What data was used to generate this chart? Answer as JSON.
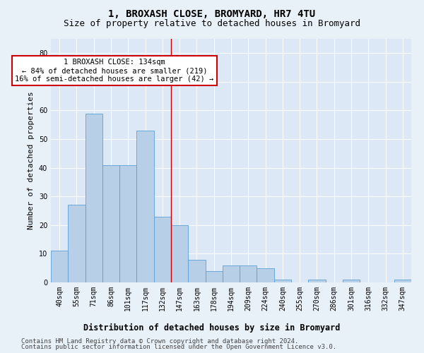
{
  "title": "1, BROXASH CLOSE, BROMYARD, HR7 4TU",
  "subtitle": "Size of property relative to detached houses in Bromyard",
  "xlabel": "Distribution of detached houses by size in Bromyard",
  "ylabel": "Number of detached properties",
  "categories": [
    "40sqm",
    "55sqm",
    "71sqm",
    "86sqm",
    "101sqm",
    "117sqm",
    "132sqm",
    "147sqm",
    "163sqm",
    "178sqm",
    "194sqm",
    "209sqm",
    "224sqm",
    "240sqm",
    "255sqm",
    "270sqm",
    "286sqm",
    "301sqm",
    "316sqm",
    "332sqm",
    "347sqm"
  ],
  "values": [
    11,
    27,
    59,
    41,
    41,
    53,
    23,
    20,
    8,
    4,
    6,
    6,
    5,
    1,
    0,
    1,
    0,
    1,
    0,
    0,
    1
  ],
  "bar_color": "#b8cfe8",
  "bar_edge_color": "#5a9fd4",
  "annotation_text": "1 BROXASH CLOSE: 134sqm\n← 84% of detached houses are smaller (219)\n16% of semi-detached houses are larger (42) →",
  "annotation_box_color": "#ffffff",
  "annotation_box_edge_color": "#cc0000",
  "vline_color": "#cc0000",
  "ylim": [
    0,
    85
  ],
  "yticks": [
    0,
    10,
    20,
    30,
    40,
    50,
    60,
    70,
    80
  ],
  "footer_line1": "Contains HM Land Registry data © Crown copyright and database right 2024.",
  "footer_line2": "Contains public sector information licensed under the Open Government Licence v3.0.",
  "background_color": "#e8f0f8",
  "plot_bg_color": "#dce8f5",
  "title_fontsize": 10,
  "subtitle_fontsize": 9,
  "ylabel_fontsize": 8,
  "xlabel_fontsize": 8.5,
  "tick_fontsize": 7,
  "annotation_fontsize": 7.5,
  "footer_fontsize": 6.5,
  "vline_x_index": 6
}
